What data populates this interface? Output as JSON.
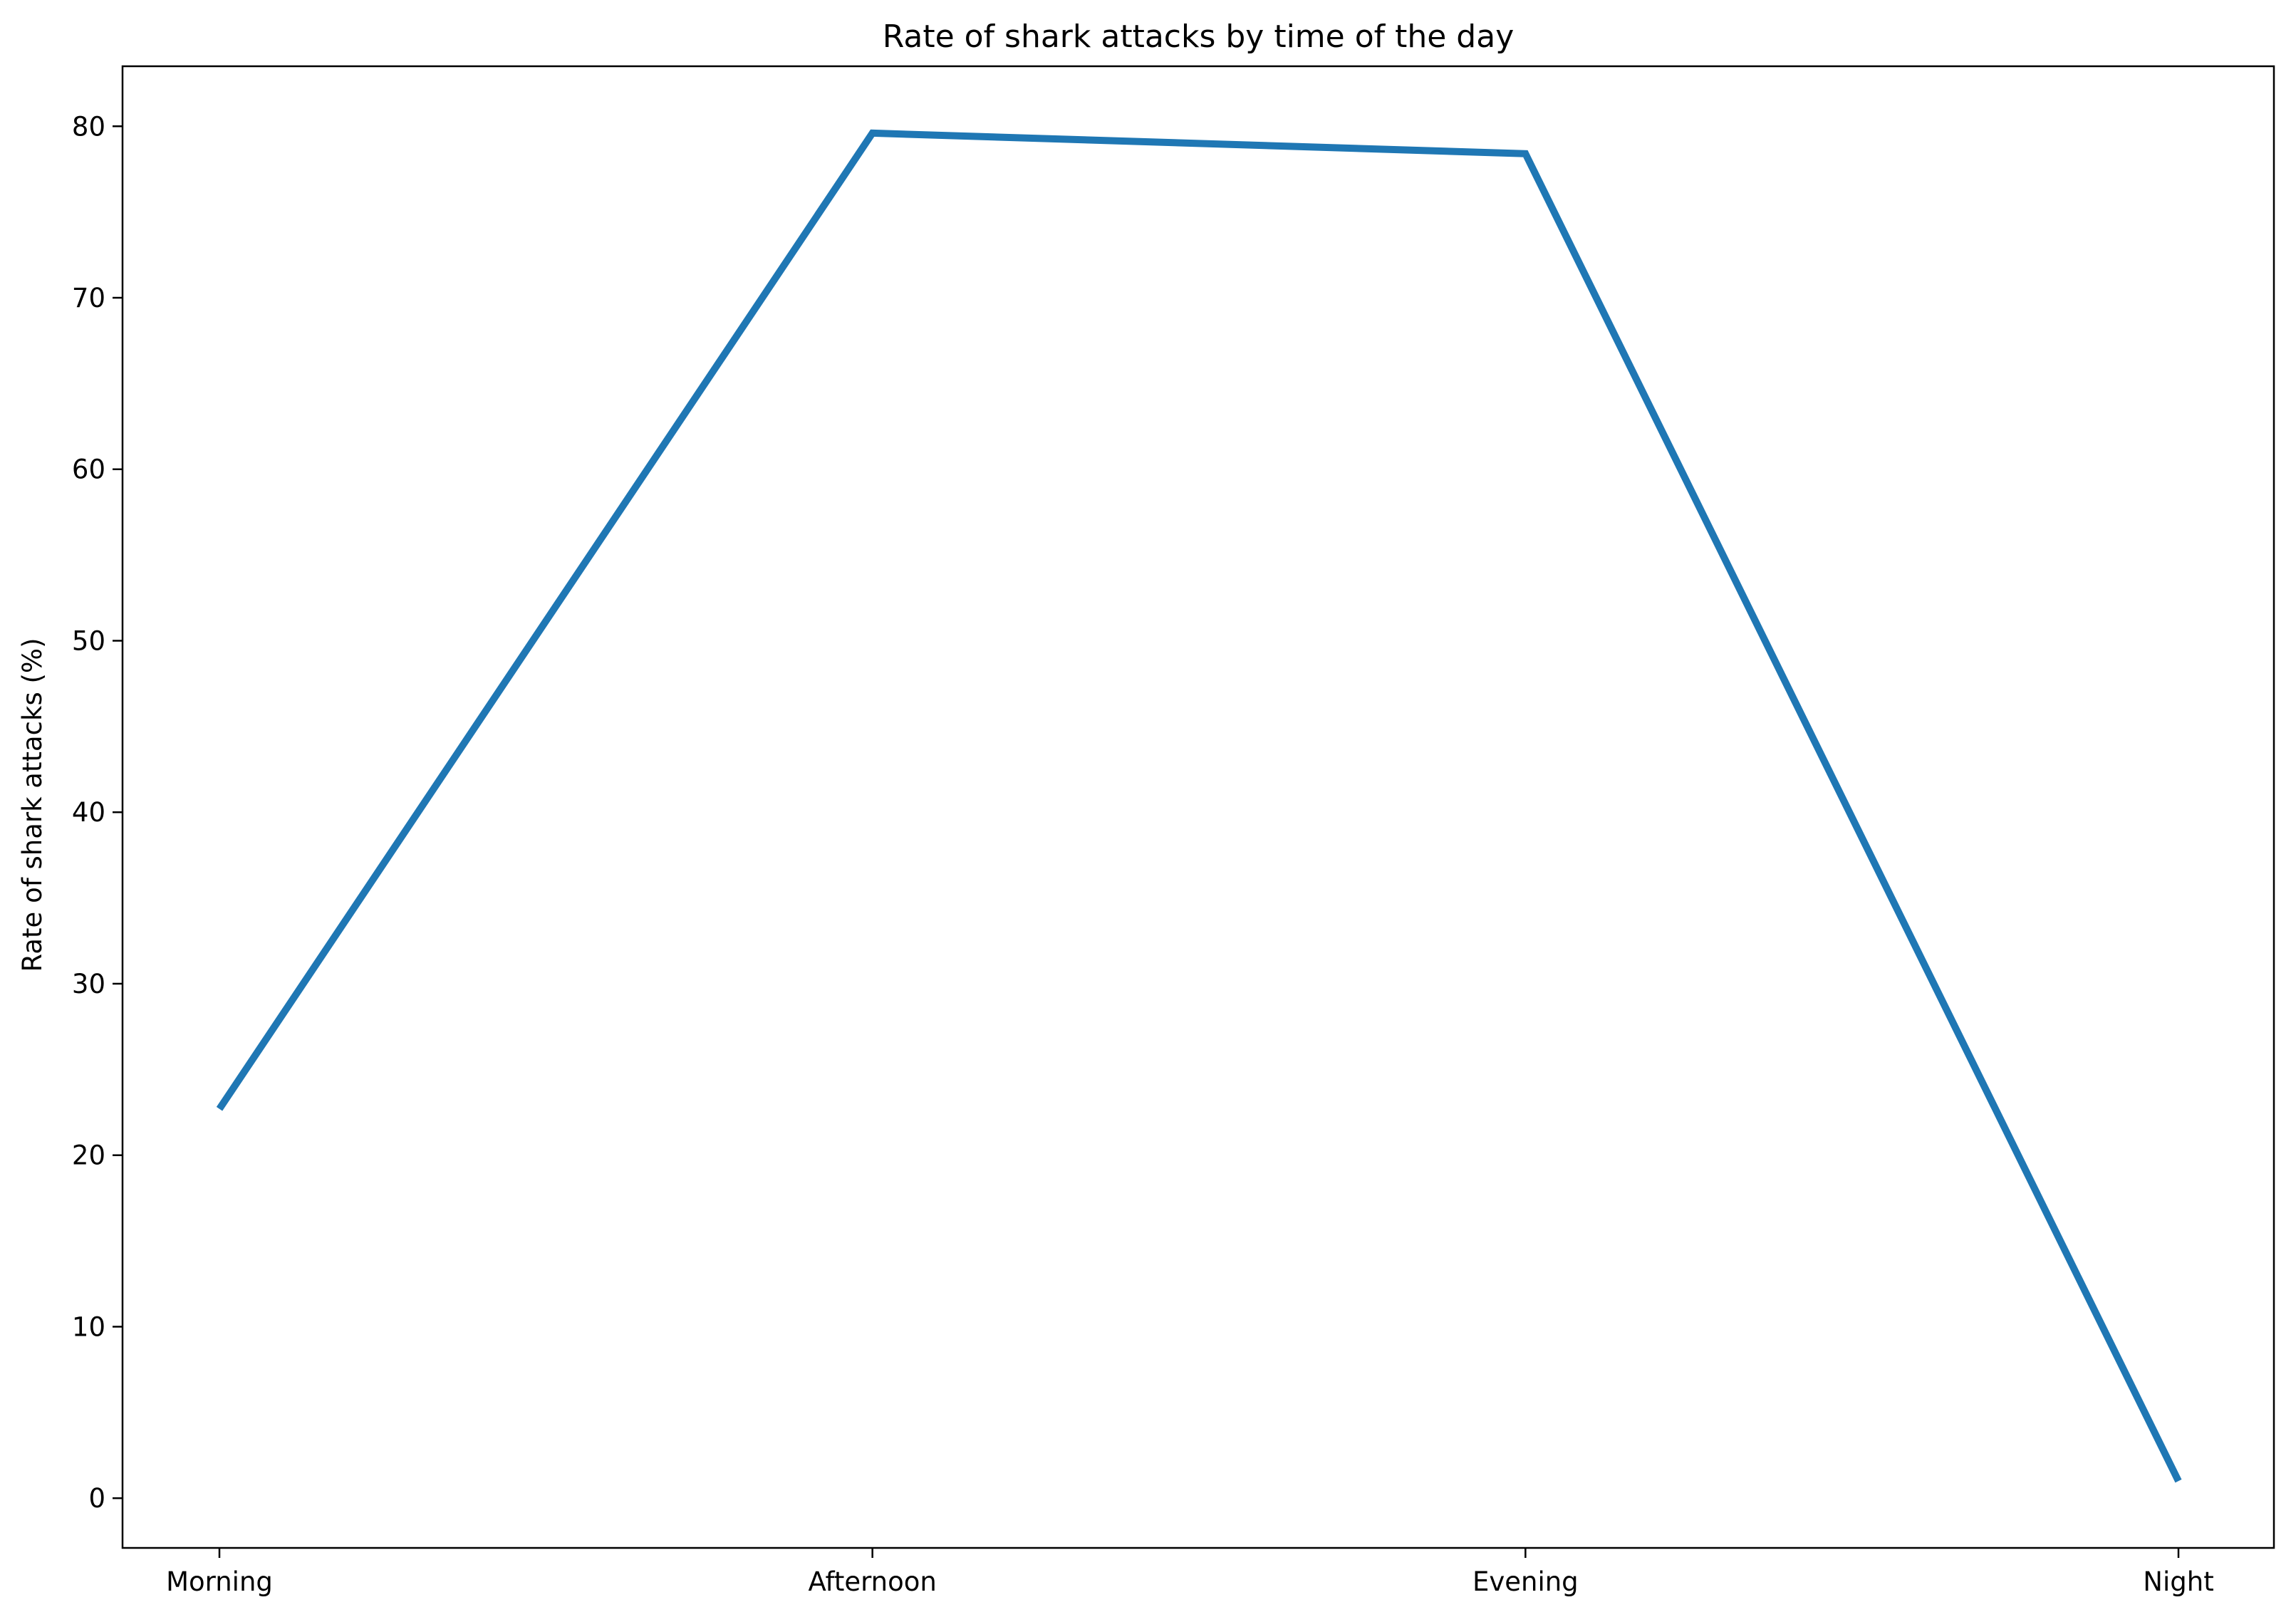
{
  "chart_data": {
    "type": "line",
    "title": "Rate of shark attacks by time of the day",
    "xlabel": "",
    "ylabel": "Rate of shark attacks (%)",
    "categories": [
      "Morning",
      "Afternoon",
      "Evening",
      "Night"
    ],
    "series": [
      {
        "values": [
          22.7,
          79.6,
          78.4,
          1.0
        ]
      }
    ],
    "yticks": [
      "0",
      "10",
      "20",
      "30",
      "40",
      "50",
      "60",
      "70",
      "80"
    ],
    "ylim": [
      -2.9,
      83.5
    ],
    "grid": false,
    "legend": "none",
    "colors": {
      "line": "#1f77b4",
      "axes": "#000000",
      "background": "#ffffff"
    }
  }
}
